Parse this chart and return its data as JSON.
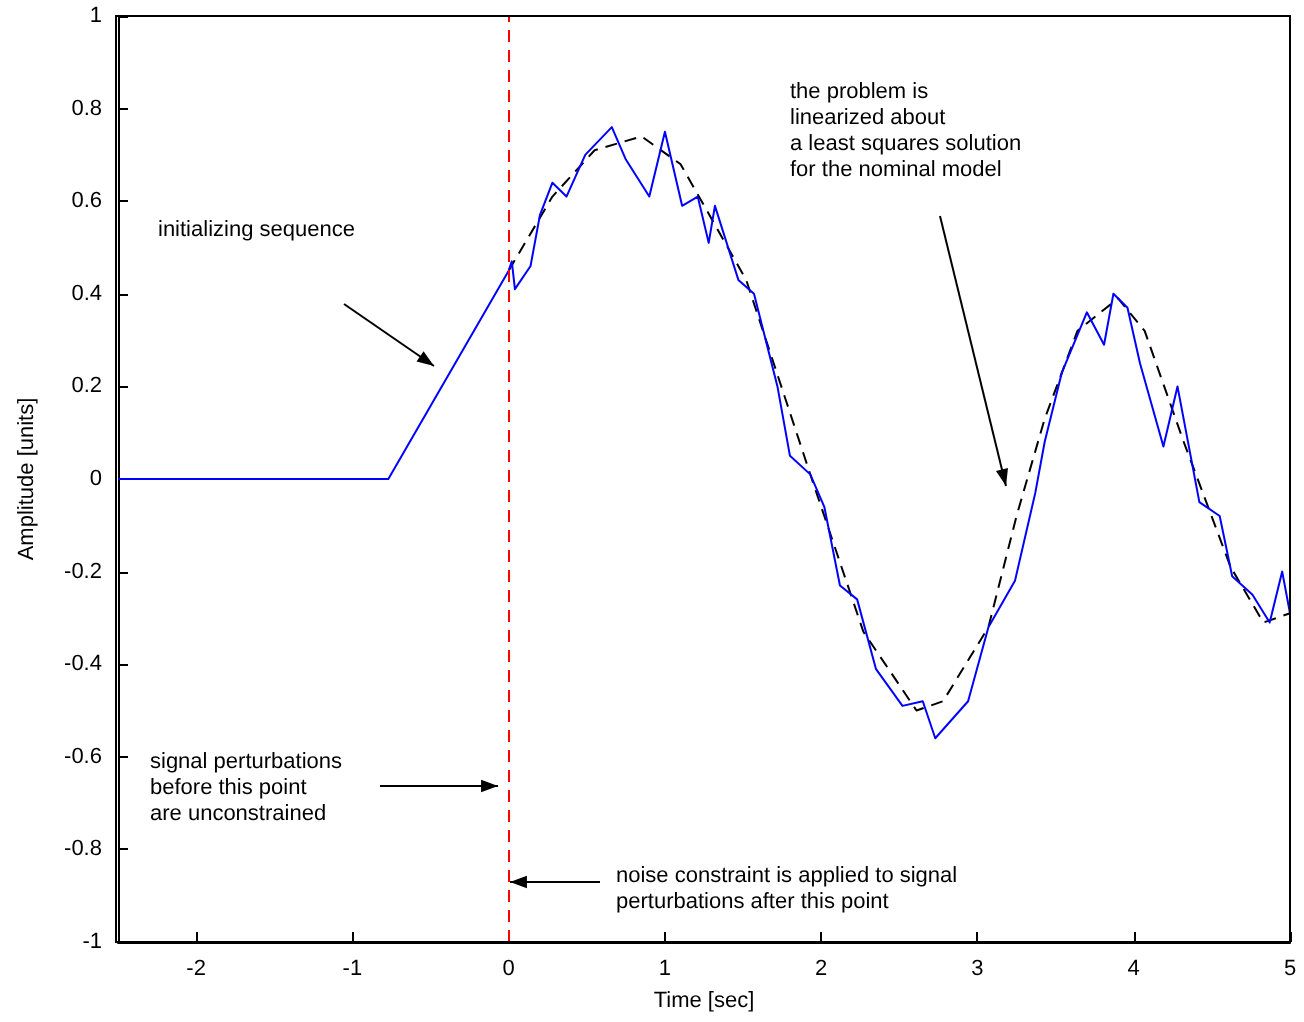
{
  "chart_data": {
    "type": "line",
    "xlabel": "Time [sec]",
    "ylabel": "Amplitude [units]",
    "xlim": [
      -2.5,
      5
    ],
    "xticks": [
      -2,
      -1,
      0,
      1,
      2,
      3,
      4,
      5
    ],
    "ylim": [
      -1,
      1
    ],
    "yticks": [
      -1,
      -0.8,
      -0.6,
      -0.4,
      -0.2,
      0,
      0.2,
      0.4,
      0.6,
      0.8,
      1
    ],
    "grid": false,
    "marker": "none",
    "series": [
      {
        "color": "#0000ff",
        "line_style": "solid",
        "x": [
          -2.5,
          -0.77,
          0,
          0.02,
          0.04,
          0.14,
          0.2,
          0.28,
          0.37,
          0.49,
          0.66,
          0.75,
          0.9,
          1.0,
          1.11,
          1.21,
          1.28,
          1.32,
          1.47,
          1.57,
          1.72,
          1.8,
          1.93,
          2.02,
          2.12,
          2.23,
          2.35,
          2.52,
          2.65,
          2.73,
          2.94,
          3.07,
          3.24,
          3.37,
          3.43,
          3.54,
          3.7,
          3.81,
          3.87,
          3.96,
          4.04,
          4.19,
          4.28,
          4.42,
          4.55,
          4.63,
          4.76,
          4.87,
          4.95,
          5.0
        ],
        "values": [
          0,
          0,
          0.45,
          0.47,
          0.41,
          0.46,
          0.57,
          0.64,
          0.61,
          0.7,
          0.76,
          0.69,
          0.61,
          0.75,
          0.59,
          0.61,
          0.51,
          0.59,
          0.43,
          0.4,
          0.2,
          0.05,
          0.01,
          -0.06,
          -0.23,
          -0.26,
          -0.41,
          -0.49,
          -0.48,
          -0.56,
          -0.48,
          -0.32,
          -0.22,
          -0.03,
          0.08,
          0.23,
          0.36,
          0.29,
          0.4,
          0.37,
          0.25,
          0.07,
          0.2,
          -0.05,
          -0.08,
          -0.21,
          -0.25,
          -0.31,
          -0.2,
          -0.29
        ]
      },
      {
        "color": "#000000",
        "line_style": "dashed",
        "x": [
          0,
          0.28,
          0.55,
          0.85,
          1.1,
          1.52,
          1.94,
          2.27,
          2.61,
          2.78,
          3.07,
          3.25,
          3.43,
          3.64,
          3.9,
          4.07,
          4.32,
          4.62,
          4.83,
          5.0
        ],
        "values": [
          0.45,
          0.61,
          0.71,
          0.74,
          0.68,
          0.43,
          0.0,
          -0.33,
          -0.5,
          -0.48,
          -0.32,
          -0.08,
          0.13,
          0.32,
          0.39,
          0.32,
          0.08,
          -0.19,
          -0.31,
          -0.29
        ]
      }
    ],
    "ref_lines": [
      {
        "axis": "x",
        "value": 0,
        "color": "#ff0000",
        "line_style": "dashed"
      }
    ],
    "annotations": [
      "initializing sequence",
      "the problem is\nlinearized about\na least squares solution\nfor the nominal model",
      "signal perturbations\nbefore this point\nare unconstrained",
      "noise constraint is applied to signal\nperturbations after this point"
    ]
  }
}
